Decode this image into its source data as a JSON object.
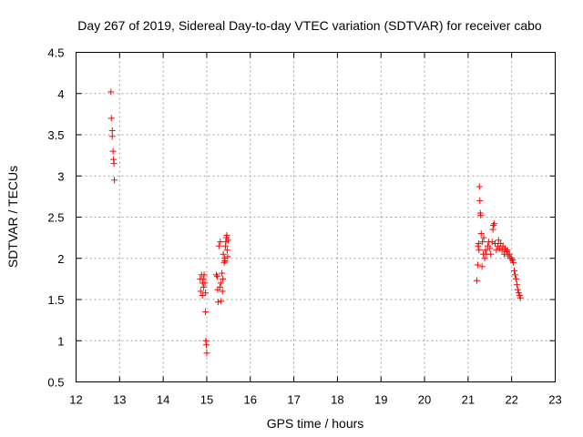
{
  "chart_data": {
    "type": "scatter",
    "title": "Day 267 of 2019, Sidereal Day-to-day VTEC variation (SDTVAR) for receiver cabo",
    "xlabel": "GPS time / hours",
    "ylabel": "SDTVAR / TECUs",
    "xlim": [
      12,
      23
    ],
    "ylim": [
      0.5,
      4.5
    ],
    "xticks": [
      "12",
      "13",
      "14",
      "15",
      "16",
      "17",
      "18",
      "19",
      "20",
      "21",
      "22",
      "23"
    ],
    "yticks": [
      "0.5",
      "1",
      "1.5",
      "2",
      "2.5",
      "3",
      "3.5",
      "4",
      "4.5"
    ],
    "grid": true,
    "marker": "+",
    "color": "#ff0000",
    "series": [
      {
        "name": "SDTVAR",
        "points": [
          [
            12.8,
            4.02
          ],
          [
            12.81,
            3.7
          ],
          [
            12.83,
            3.55
          ],
          [
            12.83,
            3.48
          ],
          [
            12.85,
            3.3
          ],
          [
            12.86,
            3.2
          ],
          [
            12.87,
            3.15
          ],
          [
            12.88,
            2.95
          ],
          [
            14.85,
            1.75
          ],
          [
            14.86,
            1.6
          ],
          [
            14.88,
            1.8
          ],
          [
            14.9,
            1.55
          ],
          [
            14.9,
            1.7
          ],
          [
            14.92,
            1.75
          ],
          [
            14.93,
            1.65
          ],
          [
            14.94,
            1.8
          ],
          [
            14.96,
            1.7
          ],
          [
            14.97,
            1.58
          ],
          [
            14.97,
            1.35
          ],
          [
            14.98,
            1.0
          ],
          [
            14.99,
            0.95
          ],
          [
            15.0,
            0.85
          ],
          [
            15.22,
            1.8
          ],
          [
            15.24,
            1.78
          ],
          [
            15.25,
            1.62
          ],
          [
            15.26,
            1.47
          ],
          [
            15.28,
            2.15
          ],
          [
            15.3,
            1.65
          ],
          [
            15.31,
            2.2
          ],
          [
            15.32,
            1.7
          ],
          [
            15.33,
            1.48
          ],
          [
            15.35,
            1.82
          ],
          [
            15.36,
            1.6
          ],
          [
            15.37,
            1.75
          ],
          [
            15.38,
            2.05
          ],
          [
            15.4,
            1.95
          ],
          [
            15.41,
            2.0
          ],
          [
            15.42,
            1.97
          ],
          [
            15.43,
            2.15
          ],
          [
            15.44,
            2.2
          ],
          [
            15.45,
            2.25
          ],
          [
            15.46,
            2.28
          ],
          [
            15.47,
            2.1
          ],
          [
            15.48,
            2.02
          ],
          [
            15.49,
            2.22
          ],
          [
            21.2,
            1.73
          ],
          [
            21.22,
            1.92
          ],
          [
            21.23,
            2.15
          ],
          [
            21.24,
            2.18
          ],
          [
            21.25,
            2.1
          ],
          [
            21.26,
            2.87
          ],
          [
            21.27,
            2.7
          ],
          [
            21.28,
            2.55
          ],
          [
            21.29,
            2.52
          ],
          [
            21.3,
            2.3
          ],
          [
            21.32,
            1.9
          ],
          [
            21.33,
            2.2
          ],
          [
            21.35,
            2.05
          ],
          [
            21.36,
            2.25
          ],
          [
            21.38,
            2.0
          ],
          [
            21.4,
            2.1
          ],
          [
            21.42,
            2.05
          ],
          [
            21.45,
            2.15
          ],
          [
            21.47,
            2.2
          ],
          [
            21.5,
            2.12
          ],
          [
            21.52,
            2.05
          ],
          [
            21.55,
            2.2
          ],
          [
            21.57,
            2.35
          ],
          [
            21.58,
            2.4
          ],
          [
            21.6,
            2.42
          ],
          [
            21.62,
            2.18
          ],
          [
            21.65,
            2.1
          ],
          [
            21.68,
            2.15
          ],
          [
            21.7,
            2.22
          ],
          [
            21.72,
            2.12
          ],
          [
            21.75,
            2.18
          ],
          [
            21.78,
            2.1
          ],
          [
            21.8,
            2.15
          ],
          [
            21.83,
            2.05
          ],
          [
            21.85,
            2.12
          ],
          [
            21.88,
            2.08
          ],
          [
            21.9,
            2.1
          ],
          [
            21.92,
            2.03
          ],
          [
            21.95,
            2.05
          ],
          [
            21.97,
            2.0
          ],
          [
            22.0,
            2.0
          ],
          [
            22.02,
            1.98
          ],
          [
            22.04,
            1.95
          ],
          [
            22.06,
            1.85
          ],
          [
            22.08,
            1.8
          ],
          [
            22.1,
            1.75
          ],
          [
            22.12,
            1.68
          ],
          [
            22.14,
            1.62
          ],
          [
            22.16,
            1.58
          ],
          [
            22.18,
            1.55
          ],
          [
            22.2,
            1.52
          ]
        ]
      }
    ]
  }
}
